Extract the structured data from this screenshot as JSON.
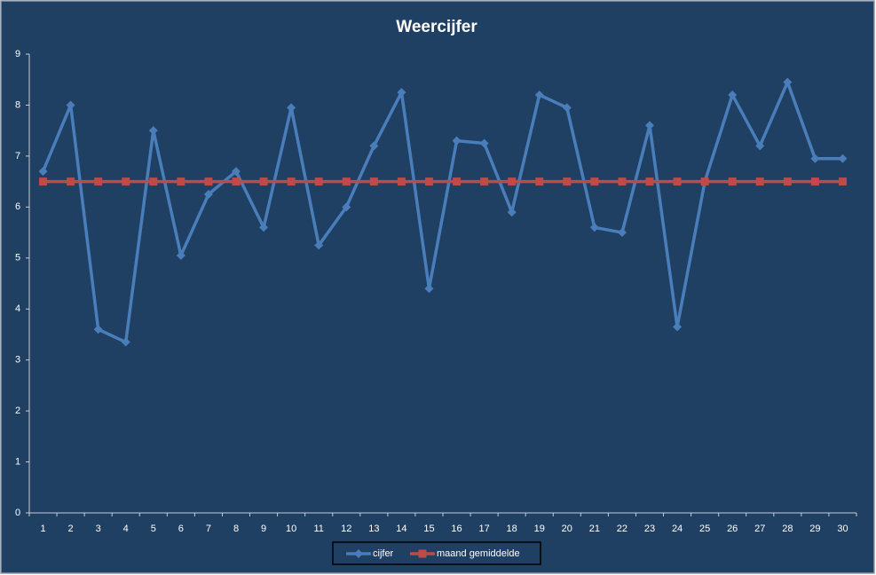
{
  "chart_data": {
    "type": "line",
    "title": "Weercijfer",
    "categories": [
      "1",
      "2",
      "3",
      "4",
      "5",
      "6",
      "7",
      "8",
      "9",
      "10",
      "11",
      "12",
      "13",
      "14",
      "15",
      "16",
      "17",
      "18",
      "19",
      "20",
      "21",
      "22",
      "23",
      "24",
      "25",
      "26",
      "27",
      "28",
      "29",
      "30"
    ],
    "series": [
      {
        "name": "cijfer",
        "color": "#4a7ebb",
        "marker": "diamond",
        "values": [
          6.7,
          8.0,
          3.6,
          3.35,
          7.5,
          5.05,
          6.25,
          6.7,
          5.6,
          7.95,
          5.25,
          6.0,
          7.2,
          8.25,
          4.4,
          7.3,
          7.25,
          5.9,
          8.2,
          7.95,
          5.6,
          5.5,
          7.6,
          3.65,
          6.5,
          8.2,
          7.2,
          8.45,
          6.95,
          6.95
        ]
      },
      {
        "name": "maand gemiddelde",
        "color": "#be4b48",
        "marker": "square",
        "values": [
          6.5,
          6.5,
          6.5,
          6.5,
          6.5,
          6.5,
          6.5,
          6.5,
          6.5,
          6.5,
          6.5,
          6.5,
          6.5,
          6.5,
          6.5,
          6.5,
          6.5,
          6.5,
          6.5,
          6.5,
          6.5,
          6.5,
          6.5,
          6.5,
          6.5,
          6.5,
          6.5,
          6.5,
          6.5,
          6.5
        ]
      }
    ],
    "ylim": [
      0,
      9
    ],
    "yticks": [
      0,
      1,
      2,
      3,
      4,
      5,
      6,
      7,
      8,
      9
    ],
    "grid": false,
    "legend": "bottom"
  }
}
